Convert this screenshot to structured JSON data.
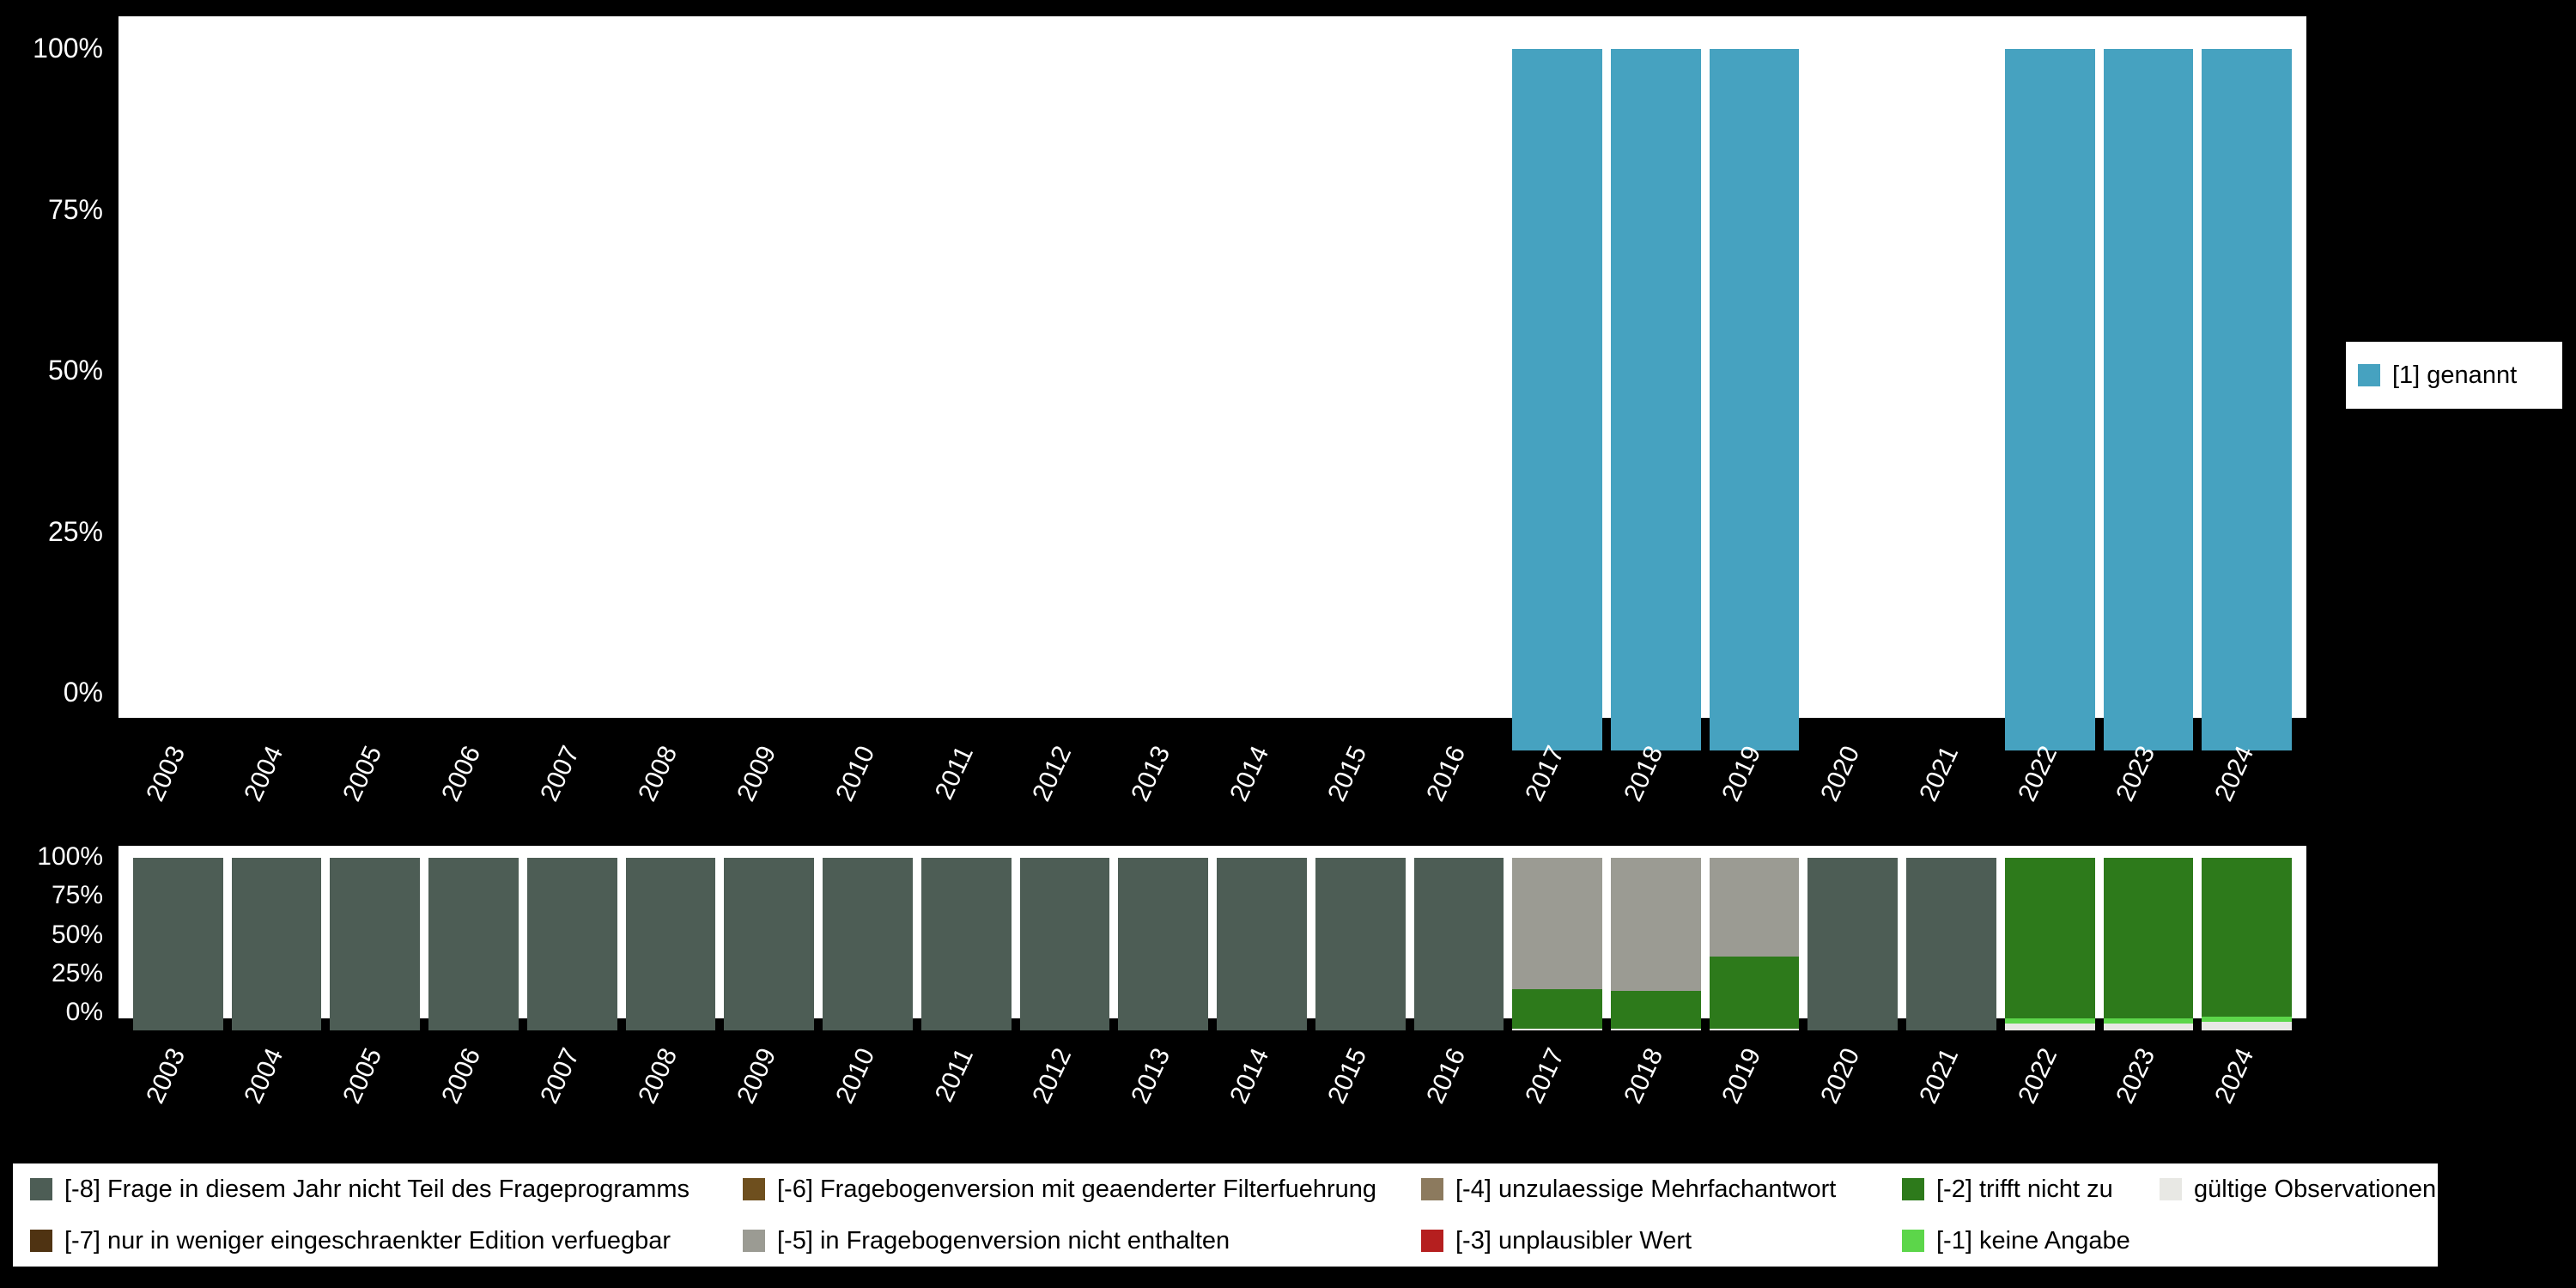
{
  "page": {
    "background": "#000000",
    "plot_background": "#ffffff"
  },
  "chart_data": [
    {
      "type": "bar",
      "title": "",
      "xlabel": "",
      "ylabel": "",
      "ylim": [
        0,
        100
      ],
      "grid": false,
      "legend_position": "right",
      "yticks": [
        "0%",
        "25%",
        "50%",
        "75%",
        "100%"
      ],
      "categories": [
        "2003",
        "2004",
        "2005",
        "2006",
        "2007",
        "2008",
        "2009",
        "2010",
        "2011",
        "2012",
        "2013",
        "2014",
        "2015",
        "2016",
        "2017",
        "2018",
        "2019",
        "2020",
        "2021",
        "2022",
        "2023",
        "2024"
      ],
      "series": [
        {
          "name": "[1] genannt",
          "color": "#46a2c0",
          "values": [
            0,
            0,
            0,
            0,
            0,
            0,
            0,
            0,
            0,
            0,
            0,
            0,
            0,
            0,
            100,
            100,
            100,
            0,
            0,
            100,
            100,
            100
          ]
        }
      ]
    },
    {
      "type": "bar",
      "stacked": true,
      "title": "",
      "xlabel": "",
      "ylabel": "",
      "ylim": [
        0,
        100
      ],
      "grid": false,
      "legend_position": "bottom",
      "yticks": [
        "0%",
        "25%",
        "50%",
        "75%",
        "100%"
      ],
      "categories": [
        "2003",
        "2004",
        "2005",
        "2006",
        "2007",
        "2008",
        "2009",
        "2010",
        "2011",
        "2012",
        "2013",
        "2014",
        "2015",
        "2016",
        "2017",
        "2018",
        "2019",
        "2020",
        "2021",
        "2022",
        "2023",
        "2024"
      ],
      "series": [
        {
          "name": "gültige Observationen",
          "color": "#e8e8e4",
          "values": [
            0,
            0,
            0,
            0,
            0,
            0,
            0,
            0,
            0,
            0,
            0,
            0,
            0,
            0,
            1,
            1,
            1,
            0,
            0,
            4,
            4,
            5
          ]
        },
        {
          "name": "[-1] keine Angabe",
          "color": "#5cd64a",
          "values": [
            0,
            0,
            0,
            0,
            0,
            0,
            0,
            0,
            0,
            0,
            0,
            0,
            0,
            0,
            0,
            0,
            0,
            0,
            0,
            3,
            3,
            3
          ]
        },
        {
          "name": "[-2] trifft nicht zu",
          "color": "#2d7a1b",
          "values": [
            0,
            0,
            0,
            0,
            0,
            0,
            0,
            0,
            0,
            0,
            0,
            0,
            0,
            0,
            23,
            22,
            42,
            0,
            0,
            93,
            93,
            92
          ]
        },
        {
          "name": "[-3] unplausibler Wert",
          "color": "#b51f1f",
          "values": [
            0,
            0,
            0,
            0,
            0,
            0,
            0,
            0,
            0,
            0,
            0,
            0,
            0,
            0,
            0,
            0,
            0,
            0,
            0,
            0,
            0,
            0
          ]
        },
        {
          "name": "[-4] unzulaessige Mehrfachantwort",
          "color": "#8c7a5e",
          "values": [
            0,
            0,
            0,
            0,
            0,
            0,
            0,
            0,
            0,
            0,
            0,
            0,
            0,
            0,
            0,
            0,
            0,
            0,
            0,
            0,
            0,
            0
          ]
        },
        {
          "name": "[-5] in Fragebogenversion nicht enthalten",
          "color": "#9b9b93",
          "values": [
            0,
            0,
            0,
            0,
            0,
            0,
            0,
            0,
            0,
            0,
            0,
            0,
            0,
            0,
            76,
            77,
            57,
            0,
            0,
            0,
            0,
            0
          ]
        },
        {
          "name": "[-6] Fragebogenversion mit geaenderter Filterfuehrung",
          "color": "#6e4f1e",
          "values": [
            0,
            0,
            0,
            0,
            0,
            0,
            0,
            0,
            0,
            0,
            0,
            0,
            0,
            0,
            0,
            0,
            0,
            0,
            0,
            0,
            0,
            0
          ]
        },
        {
          "name": "[-7] nur in weniger eingeschraenkter Edition verfuegbar",
          "color": "#4f3312",
          "values": [
            0,
            0,
            0,
            0,
            0,
            0,
            0,
            0,
            0,
            0,
            0,
            0,
            0,
            0,
            0,
            0,
            0,
            0,
            0,
            0,
            0,
            0
          ]
        },
        {
          "name": "[-8] Frage in diesem Jahr nicht Teil des Frageprogramms",
          "color": "#4d5d55",
          "values": [
            100,
            100,
            100,
            100,
            100,
            100,
            100,
            100,
            100,
            100,
            100,
            100,
            100,
            100,
            0,
            0,
            0,
            100,
            100,
            0,
            0,
            0
          ]
        }
      ]
    }
  ],
  "legend_right": {
    "items": [
      {
        "label": "[1] genannt",
        "color": "#46a2c0"
      }
    ]
  },
  "legend_bottom": {
    "items": [
      {
        "label": "[-8] Frage in diesem Jahr nicht Teil des Frageprogramms",
        "color": "#4d5d55"
      },
      {
        "label": "[-6] Fragebogenversion mit geaenderter Filterfuehrung",
        "color": "#6e4f1e"
      },
      {
        "label": "[-4] unzulaessige Mehrfachantwort",
        "color": "#8c7a5e"
      },
      {
        "label": "[-2] trifft nicht zu",
        "color": "#2d7a1b"
      },
      {
        "label": "gültige Observationen",
        "color": "#e8e8e4"
      },
      {
        "label": "[-7] nur in weniger eingeschraenkter Edition verfuegbar",
        "color": "#4f3312"
      },
      {
        "label": "[-5] in Fragebogenversion nicht enthalten",
        "color": "#9b9b93"
      },
      {
        "label": "[-3] unplausibler Wert",
        "color": "#b51f1f"
      },
      {
        "label": "[-1] keine Angabe",
        "color": "#5cd64a"
      }
    ]
  }
}
